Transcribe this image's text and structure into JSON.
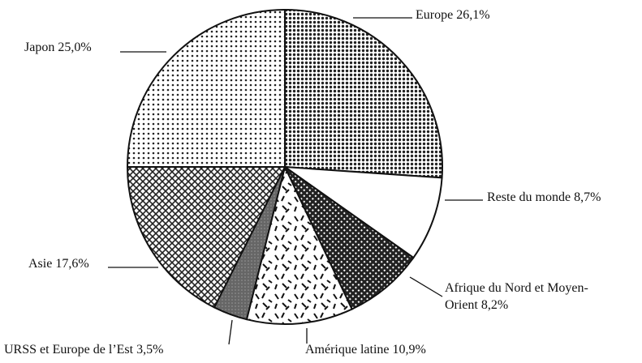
{
  "chart_data": {
    "type": "pie",
    "categories": [
      "Europe",
      "Reste du monde",
      "Afrique du Nord et Moyen-Orient",
      "Amérique latine",
      "URSS et Europe de l’Est",
      "Asie",
      "Japon"
    ],
    "values": [
      26.1,
      8.7,
      8.2,
      10.9,
      3.5,
      17.6,
      25.0
    ],
    "value_labels": [
      "26,1%",
      "8,7%",
      "8,2%",
      "10,9%",
      "3,5%",
      "17,6%",
      "25,0%"
    ],
    "colors": [
      "#2a2a2a",
      "#ffffff",
      "#1e1e1e",
      "#ffffff",
      "#555555",
      "#3a3a3a",
      "#888888"
    ]
  }
}
